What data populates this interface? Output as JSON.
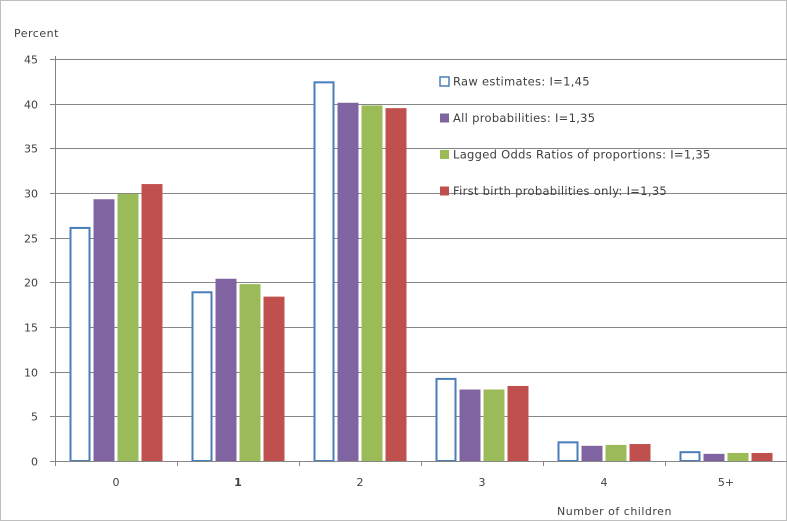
{
  "chart_data": {
    "type": "bar",
    "ylabel": "Percent",
    "xlabel": "Number of children",
    "categories": [
      "0",
      "1",
      "2",
      "3",
      "4",
      "5+"
    ],
    "ylim": [
      0,
      45
    ],
    "yticks": [
      0,
      5,
      10,
      15,
      20,
      25,
      30,
      35,
      40,
      45
    ],
    "grid": true,
    "legend_position": "top-right",
    "series": [
      {
        "name": "Raw estimates: I=1,45",
        "color": "#ffffff",
        "stroke": "#4a7ebb",
        "values": [
          26.2,
          19.0,
          42.5,
          9.3,
          2.2,
          1.1
        ]
      },
      {
        "name": "All probabilities: I=1,35",
        "color": "#8064a2",
        "values": [
          29.3,
          20.4,
          40.1,
          8.0,
          1.7,
          0.8
        ]
      },
      {
        "name": "Lagged Odds Ratios of proportions: I=1,35",
        "color": "#9bbb59",
        "values": [
          29.9,
          19.8,
          39.8,
          8.0,
          1.8,
          0.9
        ]
      },
      {
        "name": "First birth probabilities only: I=1,35",
        "color": "#c0504d",
        "values": [
          31.0,
          18.4,
          39.5,
          8.4,
          1.9,
          0.9
        ]
      }
    ]
  }
}
